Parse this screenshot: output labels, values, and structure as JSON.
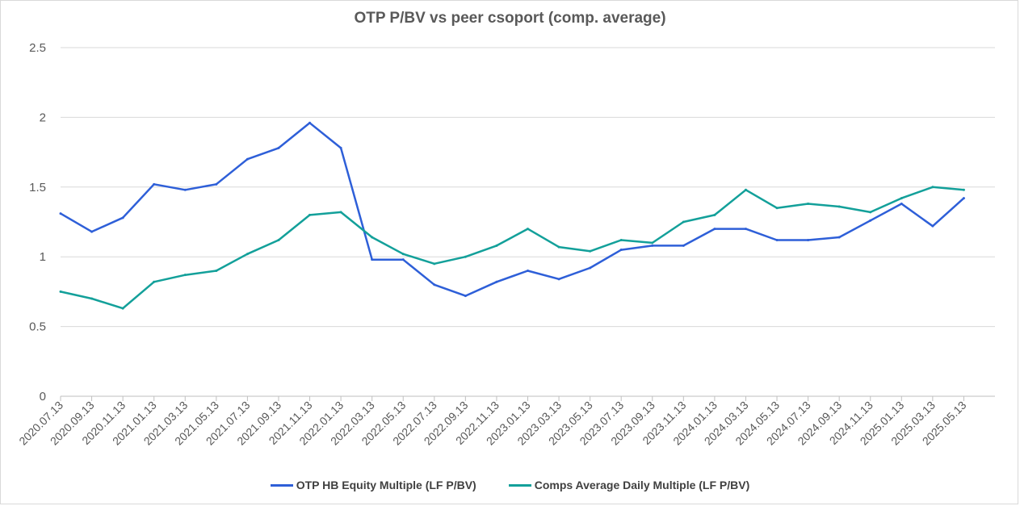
{
  "chart_data": {
    "type": "line",
    "title": "OTP P/BV vs peer csoport (comp. average)",
    "xlabel": "",
    "ylabel": "",
    "ylim": [
      0,
      2.5
    ],
    "yticks": [
      "0",
      "0.5",
      "1",
      "1.5",
      "2",
      "2.5"
    ],
    "x": [
      "2020.07.13",
      "2020.09.13",
      "2020.11.13",
      "2021.01.13",
      "2021.03.13",
      "2021.05.13",
      "2021.07.13",
      "2021.09.13",
      "2021.11.13",
      "2022.01.13",
      "2022.03.13",
      "2022.05.13",
      "2022.07.13",
      "2022.09.13",
      "2022.11.13",
      "2023.01.13",
      "2023.03.13",
      "2023.05.13",
      "2023.07.13",
      "2023.09.13",
      "2023.11.13",
      "2024.01.13",
      "2024.03.13",
      "2024.05.13",
      "2024.07.13",
      "2024.09.13",
      "2024.11.13",
      "2025.01.13",
      "2025.03.13",
      "2025.05.13"
    ],
    "grid": true,
    "legend_position": "bottom",
    "series": [
      {
        "name": "OTP HB Equity Multiple (LF P/BV)",
        "color": "#2e5fd8",
        "values": [
          1.31,
          1.18,
          1.28,
          1.52,
          1.48,
          1.52,
          1.7,
          1.78,
          1.96,
          1.78,
          0.98,
          0.98,
          0.8,
          0.72,
          0.82,
          0.9,
          0.84,
          0.92,
          1.05,
          1.08,
          1.08,
          1.2,
          1.2,
          1.12,
          1.12,
          1.14,
          1.26,
          1.38,
          1.22,
          1.42
        ]
      },
      {
        "name": "Comps Average Daily Multiple (LF P/BV)",
        "color": "#13a09a",
        "values": [
          0.75,
          0.7,
          0.63,
          0.82,
          0.87,
          0.9,
          1.02,
          1.12,
          1.3,
          1.32,
          1.14,
          1.02,
          0.95,
          1.0,
          1.08,
          1.2,
          1.07,
          1.04,
          1.12,
          1.1,
          1.25,
          1.3,
          1.48,
          1.35,
          1.38,
          1.36,
          1.32,
          1.42,
          1.5,
          1.48
        ]
      }
    ]
  }
}
